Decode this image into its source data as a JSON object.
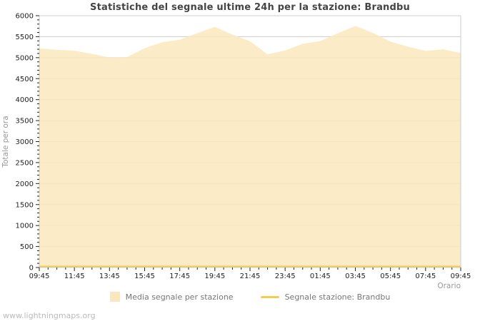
{
  "page": {
    "watermark": "www.lightningmaps.org"
  },
  "style": {
    "background": "#ffffff",
    "grid_color": "#cccccc",
    "border_color": "#cccccc",
    "tick_color": "#222222",
    "tick_label_color": "#222222",
    "axis_title_color": "#999999",
    "title_color": "#444444",
    "legend_text_color": "#777777",
    "watermark_color": "#bbbbbb",
    "area_color": "#fbe7bd",
    "station_line_color": "#f5cc4f"
  },
  "chart_data": {
    "type": "area",
    "title": "Statistiche del segnale ultime 24h per la stazione: Brandbu",
    "xlabel": "Orario",
    "ylabel": "Totale per ora",
    "ylim": [
      0,
      6000
    ],
    "y_tick_step": 500,
    "y_minor_step": 100,
    "x_minor_step_hours": 0.5,
    "x_tick_step_hours": 2,
    "grid": "horizontal",
    "legend_position": "bottom",
    "x": [
      "09:45",
      "10:45",
      "11:45",
      "12:45",
      "13:45",
      "14:45",
      "15:45",
      "16:45",
      "17:45",
      "18:45",
      "19:45",
      "20:45",
      "21:45",
      "22:45",
      "23:45",
      "00:45",
      "01:45",
      "02:45",
      "03:45",
      "04:45",
      "05:45",
      "06:45",
      "07:45",
      "08:45",
      "09:45"
    ],
    "x_tick_labels": [
      "09:45",
      "11:45",
      "13:45",
      "15:45",
      "17:45",
      "19:45",
      "21:45",
      "23:45",
      "01:45",
      "03:45",
      "05:45",
      "07:45",
      "09:45"
    ],
    "series": [
      {
        "name": "Media segnale per stazione",
        "type": "area",
        "color": "#fbe7bd",
        "values": [
          5220,
          5190,
          5165,
          5090,
          5000,
          5015,
          5225,
          5370,
          5425,
          5585,
          5735,
          5550,
          5390,
          5080,
          5170,
          5330,
          5395,
          5580,
          5755,
          5590,
          5385,
          5260,
          5160,
          5200,
          5110
        ]
      },
      {
        "name": "Segnale stazione: Brandbu",
        "type": "line",
        "color": "#f5cc4f",
        "values": [
          0,
          0,
          0,
          0,
          0,
          0,
          0,
          0,
          0,
          0,
          0,
          0,
          0,
          0,
          0,
          0,
          0,
          0,
          0,
          0,
          0,
          0,
          0,
          0,
          0
        ]
      }
    ]
  }
}
